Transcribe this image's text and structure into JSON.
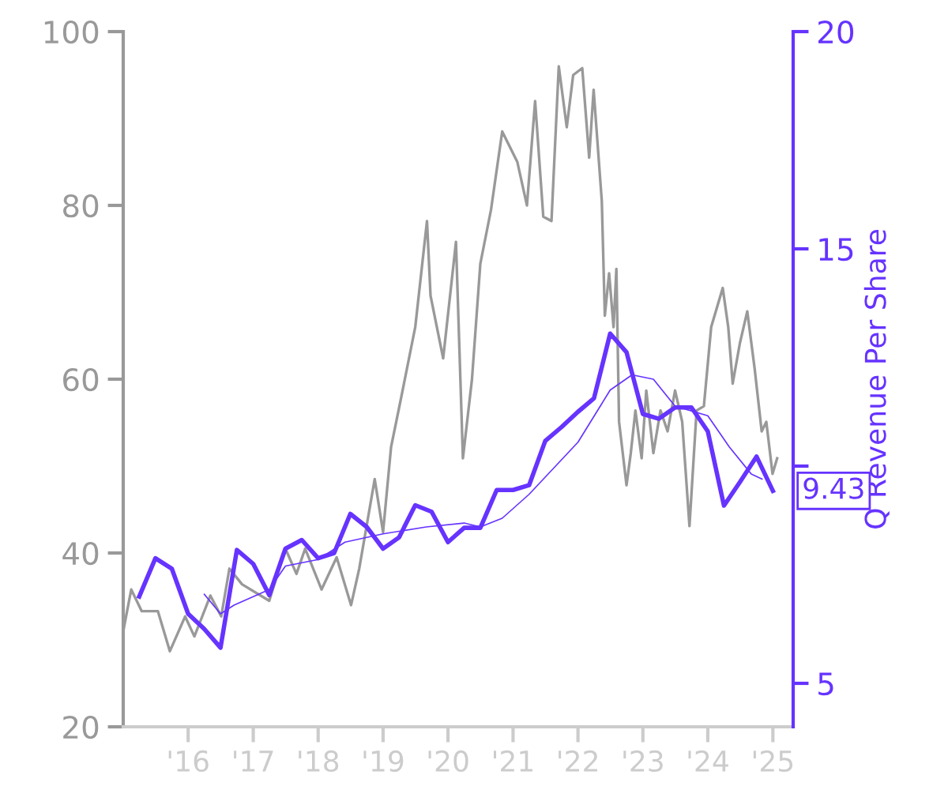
{
  "chart_data": {
    "type": "line",
    "y2label": "Q Revenue Per Share",
    "xlim": [
      "2015-01-01",
      "2025-04-25"
    ],
    "xticks": [
      {
        "value": "2016-01-01",
        "label": "'16"
      },
      {
        "value": "2017-01-01",
        "label": "'17"
      },
      {
        "value": "2018-01-01",
        "label": "'18"
      },
      {
        "value": "2019-01-01",
        "label": "'19"
      },
      {
        "value": "2020-01-01",
        "label": "'20"
      },
      {
        "value": "2021-01-01",
        "label": "'21"
      },
      {
        "value": "2022-01-01",
        "label": "'22"
      },
      {
        "value": "2023-01-01",
        "label": "'23"
      },
      {
        "value": "2024-01-01",
        "label": "'24"
      },
      {
        "value": "2025-01-01",
        "label": "'25"
      }
    ],
    "ylim": [
      20,
      100
    ],
    "yticks": [
      20,
      40,
      60,
      80,
      100
    ],
    "y2lim": [
      4,
      20
    ],
    "y2ticks": [
      5,
      {
        "value": 10,
        "label": null
      },
      15,
      20
    ],
    "grid": false,
    "legend": false,
    "series": [
      {
        "color": "#999999",
        "x": [
          "2015-01-01",
          "2015-02-15",
          "2015-04-15",
          "2015-07-15",
          "2015-09-20",
          "2015-12-15",
          "2016-02-05",
          "2016-05-05",
          "2016-07-05",
          "2016-08-20",
          "2016-10-30",
          "2017-04-01",
          "2017-07-01",
          "2017-09-01",
          "2017-10-20",
          "2018-01-20",
          "2018-04-15",
          "2018-07-05",
          "2018-08-20",
          "2018-11-15",
          "2019-01-01",
          "2019-02-15",
          "2019-04-10",
          "2019-07-01",
          "2019-09-05",
          "2019-09-25",
          "2019-12-05",
          "2020-02-15",
          "2020-03-25",
          "2020-05-15",
          "2020-07-01",
          "2020-08-30",
          "2020-11-01",
          "2021-01-25",
          "2021-03-20",
          "2021-05-05",
          "2021-06-20",
          "2021-08-05",
          "2021-09-15",
          "2021-10-30",
          "2021-12-05",
          "2022-01-25",
          "2022-03-05",
          "2022-03-30",
          "2022-05-15",
          "2022-06-01",
          "2022-06-25",
          "2022-07-20",
          "2022-08-05",
          "2022-08-20",
          "2022-10-01",
          "2022-10-25",
          "2022-11-20",
          "2022-12-25",
          "2023-01-20",
          "2023-03-01",
          "2023-04-10",
          "2023-05-20",
          "2023-07-01",
          "2023-08-10",
          "2023-09-20",
          "2023-10-30",
          "2023-12-10",
          "2024-01-20",
          "2024-03-25",
          "2024-04-25",
          "2024-05-20",
          "2024-06-30",
          "2024-08-10",
          "2024-09-20",
          "2024-10-30",
          "2024-11-25",
          "2024-12-30",
          "2025-01-25"
        ],
        "values": [
          31,
          35.8,
          33.3,
          33.3,
          28.7,
          32.7,
          30.4,
          35.1,
          32.7,
          38.2,
          36.4,
          34.5,
          40.5,
          37.6,
          40.5,
          35.8,
          39.5,
          34,
          38.2,
          48.5,
          42.4,
          52.2,
          57.6,
          66,
          78.2,
          69.6,
          62.4,
          75.8,
          50.9,
          60,
          73.3,
          79.5,
          88.5,
          85,
          80,
          92,
          78.7,
          78.2,
          96,
          89,
          95,
          95.8,
          85.5,
          93.3,
          80.5,
          67.3,
          72.2,
          66,
          72.7,
          55.1,
          47.8,
          51.5,
          56.4,
          50.9,
          58.7,
          51.5,
          56.4,
          54,
          58.7,
          55.1,
          43.1,
          56.4,
          56.9,
          66,
          70.5,
          66,
          59.5,
          64.2,
          67.8,
          61.3,
          54,
          55.1,
          49.1,
          50.9
        ]
      },
      {
        "color": "#6633ff",
        "axis": "y2",
        "x": [
          "2015-04-01",
          "2015-07-01",
          "2015-10-01",
          "2016-01-01",
          "2016-04-01",
          "2016-07-01",
          "2016-10-01",
          "2017-01-01",
          "2017-04-01",
          "2017-07-01",
          "2017-10-01",
          "2018-01-01",
          "2018-04-01",
          "2018-07-01",
          "2018-10-01",
          "2019-01-01",
          "2019-04-01",
          "2019-07-01",
          "2019-10-01",
          "2020-01-01",
          "2020-04-01",
          "2020-07-01",
          "2020-10-01",
          "2021-01-01",
          "2021-04-01",
          "2021-07-01",
          "2021-10-01",
          "2022-01-01",
          "2022-04-01",
          "2022-07-01",
          "2022-10-01",
          "2023-01-01",
          "2023-04-01",
          "2023-07-01",
          "2023-10-01",
          "2024-01-01",
          "2024-04-01",
          "2024-07-01",
          "2024-10-01",
          "2025-01-01"
        ],
        "values": [
          7.0,
          7.88,
          7.64,
          6.6,
          6.25,
          5.82,
          8.07,
          7.75,
          7.03,
          8.1,
          8.3,
          7.88,
          8.0,
          8.9,
          8.6,
          8.1,
          8.36,
          9.1,
          8.95,
          8.25,
          8.58,
          8.58,
          9.45,
          9.45,
          9.56,
          10.58,
          10.9,
          11.25,
          11.56,
          13.05,
          12.62,
          11.2,
          11.09,
          11.35,
          11.35,
          10.8,
          9.09,
          9.64,
          10.22,
          9.43
        ]
      },
      {
        "color": "#6633ff",
        "axis": "y2",
        "x": [
          "2016-04-01",
          "2016-07-01",
          "2016-09-15",
          "2017-04-01",
          "2017-07-01",
          "2018-01-01",
          "2018-06-01",
          "2019-01-01",
          "2019-09-01",
          "2020-04-01",
          "2020-07-01",
          "2020-11-01",
          "2021-04-01",
          "2022-01-01",
          "2022-07-01",
          "2022-11-01",
          "2023-03-01",
          "2023-07-01",
          "2024-01-01",
          "2024-05-01",
          "2024-09-01",
          "2024-11-01"
        ],
        "values": [
          7.05,
          6.6,
          6.8,
          7.16,
          7.7,
          7.85,
          8.25,
          8.44,
          8.6,
          8.69,
          8.6,
          8.8,
          9.35,
          10.55,
          11.75,
          12.1,
          12.0,
          11.38,
          11.16,
          10.44,
          9.82,
          9.7
        ]
      }
    ],
    "annotations": [
      "9.43"
    ]
  }
}
